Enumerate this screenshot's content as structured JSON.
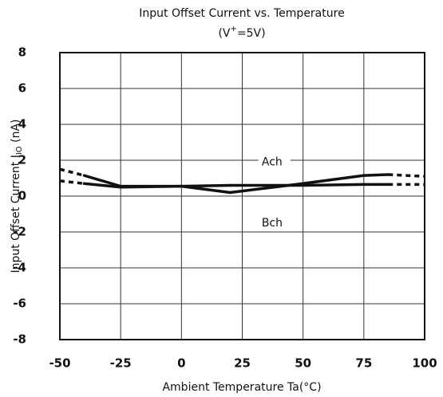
{
  "chart_data": {
    "type": "line",
    "title": "Input Offset Current vs. Temperature",
    "subtitle_parts": [
      "(V",
      "+",
      "=5V)"
    ],
    "xlabel": "Ambient Temperature Ta(°C)",
    "ylabel_parts": [
      "Input Offset Current I",
      "IO",
      " (nA)"
    ],
    "x": [
      -50,
      -40,
      -25,
      0,
      20,
      50,
      75,
      85,
      100
    ],
    "series": [
      {
        "color": "#111111",
        "values": [
          1.5,
          1.15,
          0.55,
          0.55,
          0.6,
          0.6,
          0.65,
          0.65,
          0.65
        ]
      },
      {
        "color": "#111111",
        "values": [
          0.85,
          0.7,
          0.5,
          0.55,
          0.2,
          0.7,
          1.15,
          1.2,
          1.1
        ]
      }
    ],
    "dashed_outside": [
      -40,
      85
    ],
    "annotations": [
      {
        "text": "Ach",
        "x": 33,
        "y": 1.9
      },
      {
        "text": "Bch",
        "x": 33,
        "y": -1.5
      }
    ],
    "xlim": [
      -50,
      100
    ],
    "xticks": [
      -50,
      -25,
      0,
      25,
      50,
      75,
      100
    ],
    "ylim": [
      -8,
      8
    ],
    "yticks": [
      -8,
      -6,
      -4,
      -2,
      0,
      2,
      4,
      6,
      8
    ],
    "grid": true
  }
}
